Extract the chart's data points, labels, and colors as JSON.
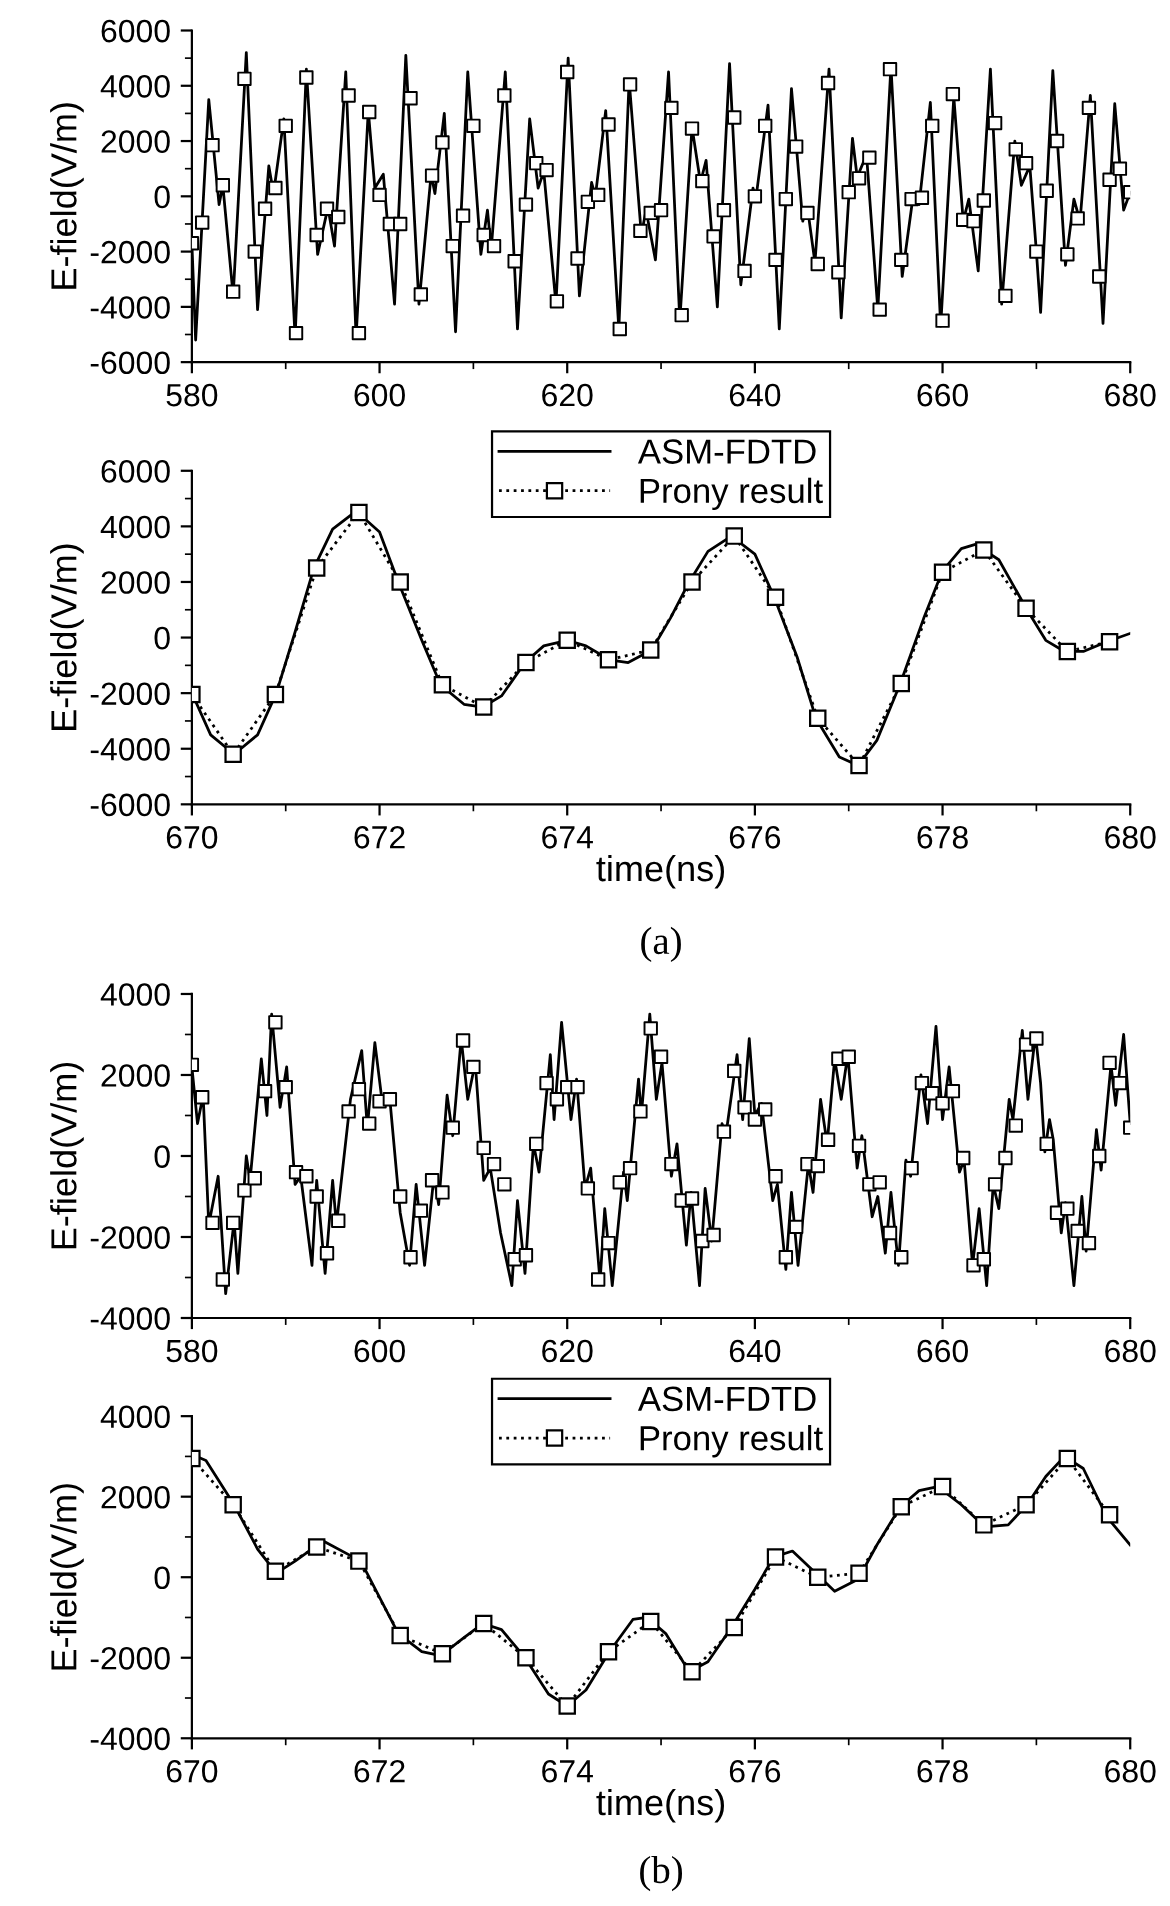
{
  "chart_data": [
    {
      "type": "line",
      "ylabel": "E-field(V/m)",
      "xlim": [
        580,
        680
      ],
      "ylim": [
        -6000,
        6000
      ],
      "xticks": [
        580,
        600,
        620,
        640,
        660,
        680
      ],
      "yticks": [
        -6000,
        -4000,
        -2000,
        0,
        2000,
        4000,
        6000
      ],
      "grid": false,
      "series": [
        {
          "color": "#000000",
          "line_style": "solid",
          "marker": "none",
          "x": [
            580.0,
            580.4,
            581.8,
            582.9,
            583.3,
            584.4,
            585.8,
            587.0,
            588.2,
            588.7,
            589.8,
            591.0,
            592.2,
            593.4,
            594.5,
            595.2,
            596.4,
            597.5,
            598.8,
            599.5,
            600.4,
            601.6,
            602.8,
            604.2,
            605.5,
            605.9,
            606.9,
            608.1,
            609.4,
            610.8,
            611.5,
            611.9,
            613.4,
            614.7,
            616.0,
            616.9,
            617.5,
            618.8,
            620.1,
            621.3,
            622.6,
            623.0,
            624.1,
            625.5,
            626.6,
            627.9,
            628.4,
            629.4,
            630.8,
            632.0,
            633.3,
            634.2,
            634.8,
            636.0,
            637.3,
            638.5,
            639.8,
            640.1,
            641.4,
            642.6,
            643.9,
            645.1,
            645.6,
            646.4,
            647.9,
            649.2,
            650.4,
            650.9,
            651.9,
            653.1,
            654.5,
            655.7,
            656.9,
            657.5,
            658.7,
            659.8,
            661.2,
            662.2,
            662.8,
            663.8,
            665.1,
            666.3,
            667.7,
            668.4,
            669.3,
            670.0,
            670.45,
            671.75,
            673.1,
            674.0,
            674.65,
            675.75,
            677.1,
            678.35,
            679.3,
            680.0
          ],
          "values": [
            -1700,
            -5200,
            3500,
            -300,
            400,
            -3600,
            5200,
            -4100,
            1100,
            100,
            2800,
            -5100,
            4600,
            -2100,
            -400,
            -1800,
            4500,
            -5100,
            3100,
            300,
            800,
            -3900,
            5100,
            -3900,
            800,
            100,
            3000,
            -4900,
            4500,
            -2100,
            -500,
            -1900,
            4500,
            -4800,
            2800,
            300,
            900,
            -3900,
            5000,
            -3600,
            500,
            0,
            3100,
            -4800,
            4200,
            -1400,
            -500,
            -2300,
            4500,
            -4500,
            2500,
            500,
            1300,
            -4000,
            4800,
            -3200,
            300,
            -100,
            3300,
            -4800,
            3900,
            -900,
            -400,
            -2400,
            4600,
            -4400,
            2100,
            700,
            1500,
            -4100,
            4700,
            -2900,
            100,
            -300,
            3400,
            -4700,
            3600,
            -900,
            -100,
            -2700,
            4600,
            -3900,
            2000,
            400,
            1100,
            -2000,
            -4200,
            4550,
            -2500,
            -100,
            -900,
            3650,
            -4600,
            3350,
            -500,
            150
          ]
        },
        {
          "type": "scatter",
          "color": "#000000",
          "marker": "square",
          "x": [
            580.0,
            581.1,
            582.2,
            583.3,
            584.4,
            585.6,
            586.7,
            587.8,
            588.9,
            590.0,
            591.1,
            592.2,
            593.3,
            594.4,
            595.6,
            596.7,
            597.8,
            598.9,
            600.0,
            601.1,
            602.2,
            603.3,
            604.4,
            605.6,
            606.7,
            607.8,
            608.9,
            610.0,
            611.1,
            612.2,
            613.3,
            614.4,
            615.6,
            616.7,
            617.8,
            618.9,
            620.0,
            621.1,
            622.2,
            623.3,
            624.4,
            625.6,
            626.7,
            627.8,
            628.9,
            630.0,
            631.1,
            632.2,
            633.3,
            634.4,
            635.6,
            636.7,
            637.8,
            638.9,
            640.0,
            641.1,
            642.2,
            643.3,
            644.4,
            645.6,
            646.7,
            647.8,
            648.9,
            650.0,
            651.1,
            652.2,
            653.3,
            654.4,
            655.6,
            656.7,
            657.8,
            658.9,
            660.0,
            661.1,
            662.2,
            663.3,
            664.4,
            665.6,
            666.7,
            667.8,
            668.9,
            670.0,
            671.1,
            672.2,
            673.3,
            674.4,
            675.6,
            676.7,
            677.8,
            678.9,
            680.0
          ],
          "values": [
            -1700,
            -950,
            1850,
            400,
            -3450,
            4250,
            -2000,
            -450,
            300,
            2550,
            -4950,
            4300,
            -1400,
            -450,
            -750,
            3650,
            -4950,
            3050,
            50,
            -1000,
            -1000,
            3550,
            -3550,
            750,
            1950,
            -1800,
            -700,
            2550,
            -1400,
            -1800,
            3650,
            -2350,
            -300,
            1200,
            950,
            -3800,
            4500,
            -2250,
            -200,
            50,
            2600,
            -4800,
            4050,
            -1250,
            -600,
            -500,
            3200,
            -4300,
            2450,
            550,
            -1450,
            -500,
            2850,
            -2700,
            0,
            2550,
            -2300,
            -100,
            1800,
            -600,
            -2450,
            4100,
            -2750,
            150,
            650,
            1400,
            -4100,
            4600,
            -2300,
            -100,
            -50,
            2550,
            -4500,
            3700,
            -850,
            -900,
            -150,
            2650,
            -3600,
            1700,
            1200,
            -2000,
            200,
            2000,
            -2100,
            -800,
            3200,
            -2900,
            600,
            1000,
            150
          ]
        }
      ]
    },
    {
      "type": "line",
      "xlabel": "time(ns)",
      "ylabel": "E-field(V/m)",
      "xlim": [
        670,
        680
      ],
      "ylim": [
        -6000,
        6000
      ],
      "xticks": [
        670,
        672,
        674,
        676,
        678,
        680
      ],
      "yticks": [
        -6000,
        -4000,
        -2000,
        0,
        2000,
        4000,
        6000
      ],
      "grid": false,
      "legend": "top",
      "annotations": [
        "(a)"
      ],
      "series": [
        {
          "name": "ASM-FDTD",
          "color": "#000000",
          "line_style": "solid",
          "marker": "none",
          "x": [
            670.0,
            670.2,
            670.45,
            670.7,
            670.9,
            671.1,
            671.3,
            671.5,
            671.75,
            672.0,
            672.2,
            672.45,
            672.65,
            672.9,
            673.1,
            673.3,
            673.55,
            673.75,
            674.0,
            674.2,
            674.45,
            674.65,
            674.9,
            675.1,
            675.3,
            675.5,
            675.75,
            676.0,
            676.2,
            676.45,
            676.65,
            676.9,
            677.1,
            677.3,
            677.55,
            677.8,
            678.0,
            678.2,
            678.35,
            678.6,
            678.9,
            679.1,
            679.3,
            679.5,
            679.75,
            680.0
          ],
          "values": [
            -2000,
            -3500,
            -4200,
            -3500,
            -2000,
            200,
            2500,
            3900,
            4550,
            3800,
            2000,
            -100,
            -1700,
            -2400,
            -2500,
            -2100,
            -900,
            -300,
            -100,
            -300,
            -800,
            -900,
            -450,
            700,
            2000,
            3100,
            3650,
            3000,
            1500,
            -700,
            -2900,
            -4300,
            -4600,
            -3700,
            -1650,
            700,
            2400,
            3200,
            3350,
            2800,
            1000,
            -100,
            -500,
            -500,
            -150,
            150
          ]
        },
        {
          "name": "Prony result",
          "color": "#000000",
          "line_style": "dotted",
          "marker": "square",
          "x": [
            670.0,
            670.44,
            670.89,
            671.33,
            671.78,
            672.22,
            672.67,
            673.11,
            673.56,
            674.0,
            674.44,
            674.89,
            675.33,
            675.78,
            676.22,
            676.67,
            677.11,
            677.56,
            678.0,
            678.44,
            678.89,
            679.33,
            679.78
          ],
          "values": [
            -2050,
            -4200,
            -2050,
            2500,
            4500,
            2000,
            -1700,
            -2500,
            -900,
            -100,
            -800,
            -450,
            2000,
            3650,
            1450,
            -2900,
            -4600,
            -1650,
            2350,
            3150,
            1050,
            -500,
            -150
          ]
        }
      ]
    },
    {
      "type": "line",
      "ylabel": "E-field(V/m)",
      "xlim": [
        580,
        680
      ],
      "ylim": [
        -4000,
        4000
      ],
      "xticks": [
        580,
        600,
        620,
        640,
        660,
        680
      ],
      "yticks": [
        -4000,
        -2000,
        0,
        2000,
        4000
      ],
      "grid": false,
      "series": [
        {
          "color": "#000000",
          "line_style": "solid",
          "marker": "none",
          "x": [
            580.0,
            580.6,
            581.2,
            581.8,
            582.8,
            583.6,
            584.5,
            584.9,
            585.8,
            586.2,
            587.4,
            588.0,
            588.5,
            589.4,
            590.1,
            591.0,
            591.6,
            592.8,
            593.3,
            594.2,
            595.0,
            595.4,
            596.9,
            598.1,
            598.7,
            599.5,
            600.3,
            601.1,
            602.2,
            603.2,
            603.9,
            604.8,
            605.8,
            606.3,
            607.2,
            607.8,
            608.7,
            609.4,
            610.2,
            611.1,
            611.8,
            612.9,
            614.1,
            614.7,
            615.5,
            616.4,
            617.0,
            618.2,
            618.6,
            619.4,
            620.4,
            621.0,
            621.9,
            622.5,
            623.5,
            624.0,
            624.8,
            626.0,
            626.4,
            627.6,
            627.9,
            628.8,
            629.5,
            630.1,
            631.1,
            631.7,
            632.7,
            633.2,
            634.1,
            634.7,
            635.4,
            636.5,
            636.9,
            638.1,
            638.7,
            639.4,
            640.0,
            640.7,
            641.9,
            642.4,
            643.3,
            643.9,
            644.6,
            645.7,
            646.2,
            647.0,
            647.7,
            648.5,
            649.2,
            649.9,
            650.9,
            651.4,
            652.5,
            653.1,
            653.9,
            654.5,
            655.3,
            656.1,
            656.6,
            657.7,
            658.4,
            659.3,
            660.0,
            660.7,
            661.8,
            662.3,
            663.2,
            663.9,
            664.7,
            665.4,
            666.0,
            667.1,
            667.5,
            668.5,
            669.1,
            669.9,
            670.45,
            670.9,
            671.4,
            671.8,
            672.65,
            673.1,
            674.0,
            674.85,
            675.3,
            676.4,
            676.9,
            677.95,
            678.45,
            679.3,
            680.0
          ],
          "values": [
            2200,
            800,
            1500,
            -1700,
            -500,
            -3400,
            -1600,
            -2900,
            0,
            -600,
            2400,
            1000,
            3500,
            1200,
            2200,
            -700,
            -500,
            -2700,
            -600,
            -2900,
            -600,
            -1700,
            1400,
            2600,
            700,
            2800,
            1300,
            1400,
            -1400,
            -2700,
            -700,
            -2700,
            -500,
            -1200,
            1500,
            500,
            2900,
            1400,
            2300,
            -600,
            -300,
            -1900,
            -3200,
            -1100,
            -2900,
            300,
            -400,
            2500,
            900,
            3300,
            900,
            1900,
            -800,
            -300,
            -3100,
            -1300,
            -3200,
            -400,
            -1100,
            1900,
            1000,
            3500,
            1400,
            2300,
            -500,
            300,
            -2200,
            -900,
            -3200,
            -800,
            -2100,
            800,
            500,
            2500,
            900,
            2900,
            1000,
            1300,
            -1100,
            -700,
            -2800,
            -900,
            -2700,
            -200,
            -900,
            1400,
            300,
            2400,
            1400,
            2500,
            -300,
            500,
            -1500,
            -1000,
            -2400,
            -900,
            -2700,
            -100,
            -500,
            2000,
            800,
            3200,
            900,
            2200,
            -400,
            -100,
            -2700,
            -1300,
            -3200,
            -700,
            -1300,
            1400,
            900,
            3100,
            1400,
            3000,
            1800,
            100,
            900,
            400,
            -1900,
            -1150,
            -3200,
            -1000,
            -2350,
            650,
            -350,
            2250,
            1250,
            3000,
            800
          ]
        },
        {
          "type": "scatter",
          "color": "#000000",
          "marker": "square",
          "x": [
            580.0,
            581.1,
            582.2,
            583.3,
            584.4,
            585.6,
            586.7,
            587.8,
            588.9,
            590.0,
            591.1,
            592.2,
            593.3,
            594.4,
            595.6,
            596.7,
            597.8,
            598.9,
            600.0,
            601.1,
            602.2,
            603.3,
            604.4,
            605.6,
            606.7,
            607.8,
            608.9,
            610.0,
            611.1,
            612.2,
            613.3,
            614.4,
            615.6,
            616.7,
            617.8,
            618.9,
            620.0,
            621.1,
            622.2,
            623.3,
            624.4,
            625.6,
            626.7,
            627.8,
            628.9,
            630.0,
            631.1,
            632.2,
            633.3,
            634.4,
            635.6,
            636.7,
            637.8,
            638.9,
            640.0,
            641.1,
            642.2,
            643.3,
            644.4,
            645.6,
            646.7,
            647.8,
            648.9,
            650.0,
            651.1,
            652.2,
            653.3,
            654.4,
            655.6,
            656.7,
            657.8,
            658.9,
            660.0,
            661.1,
            662.2,
            663.3,
            664.4,
            665.6,
            666.7,
            667.8,
            668.9,
            670.0,
            671.1,
            672.2,
            673.3,
            674.4,
            675.6,
            676.7,
            677.8,
            678.9,
            680.0
          ],
          "values": [
            2250,
            1450,
            -1650,
            -3050,
            -1650,
            -850,
            -550,
            1600,
            3300,
            1700,
            -400,
            -500,
            -1000,
            -2400,
            -1600,
            1100,
            1650,
            800,
            1350,
            1400,
            -1000,
            -2500,
            -1350,
            -600,
            -900,
            700,
            2850,
            2200,
            200,
            -200,
            -700,
            -2550,
            -2450,
            300,
            1800,
            1400,
            1700,
            1700,
            -800,
            -3050,
            -2150,
            -650,
            -300,
            1100,
            3150,
            2450,
            -200,
            -1100,
            -1050,
            -2100,
            -1950,
            600,
            2100,
            1200,
            900,
            1150,
            -500,
            -2500,
            -1750,
            -200,
            -250,
            400,
            2400,
            2450,
            250,
            -700,
            -650,
            -1900,
            -2500,
            -300,
            1800,
            1550,
            1300,
            1600,
            -50,
            -2700,
            -2550,
            -700,
            -50,
            750,
            2750,
            2900,
            300,
            -1400,
            -1300,
            -1850,
            -2150,
            0,
            2300,
            1800,
            700
          ]
        }
      ]
    },
    {
      "type": "line",
      "xlabel": "time(ns)",
      "ylabel": "E-field(V/m)",
      "xlim": [
        670,
        680
      ],
      "ylim": [
        -4000,
        4000
      ],
      "xticks": [
        670,
        672,
        674,
        676,
        678,
        680
      ],
      "yticks": [
        -4000,
        -2000,
        0,
        2000,
        4000
      ],
      "grid": false,
      "legend": "top",
      "annotations": [
        "(b)"
      ],
      "series": [
        {
          "name": "ASM-FDTD",
          "color": "#000000",
          "line_style": "solid",
          "marker": "none",
          "x": [
            670.0,
            670.15,
            670.45,
            670.7,
            670.9,
            671.1,
            671.4,
            671.8,
            672.0,
            672.2,
            672.45,
            672.65,
            672.9,
            673.1,
            673.3,
            673.55,
            673.8,
            674.0,
            674.2,
            674.45,
            674.7,
            674.85,
            675.05,
            675.3,
            675.5,
            675.75,
            676.0,
            676.2,
            676.4,
            676.65,
            676.85,
            677.1,
            677.3,
            677.55,
            677.75,
            677.95,
            678.2,
            678.45,
            678.7,
            678.9,
            679.1,
            679.3,
            679.5,
            679.75,
            680.0
          ],
          "values": [
            3050,
            2900,
            1800,
            700,
            100,
            400,
            900,
            400,
            -500,
            -1400,
            -1850,
            -1950,
            -1500,
            -1150,
            -1300,
            -2000,
            -2900,
            -3200,
            -2800,
            -1850,
            -1050,
            -1000,
            -1400,
            -2350,
            -2100,
            -1250,
            -300,
            500,
            650,
            100,
            -350,
            -50,
            800,
            1750,
            2150,
            2250,
            1800,
            1250,
            1300,
            1800,
            2500,
            3000,
            2700,
            1500,
            800
          ]
        },
        {
          "name": "Prony result",
          "color": "#000000",
          "line_style": "dotted",
          "marker": "square",
          "x": [
            670.0,
            670.44,
            670.89,
            671.33,
            671.78,
            672.22,
            672.67,
            673.11,
            673.56,
            674.0,
            674.44,
            674.89,
            675.33,
            675.78,
            676.22,
            676.67,
            677.11,
            677.56,
            678.0,
            678.44,
            678.89,
            679.33,
            679.78
          ],
          "values": [
            2950,
            1800,
            150,
            750,
            400,
            -1450,
            -1900,
            -1150,
            -2000,
            -3200,
            -1850,
            -1100,
            -2350,
            -1250,
            500,
            0,
            100,
            1750,
            2250,
            1300,
            1800,
            2950,
            1550
          ]
        }
      ]
    }
  ]
}
